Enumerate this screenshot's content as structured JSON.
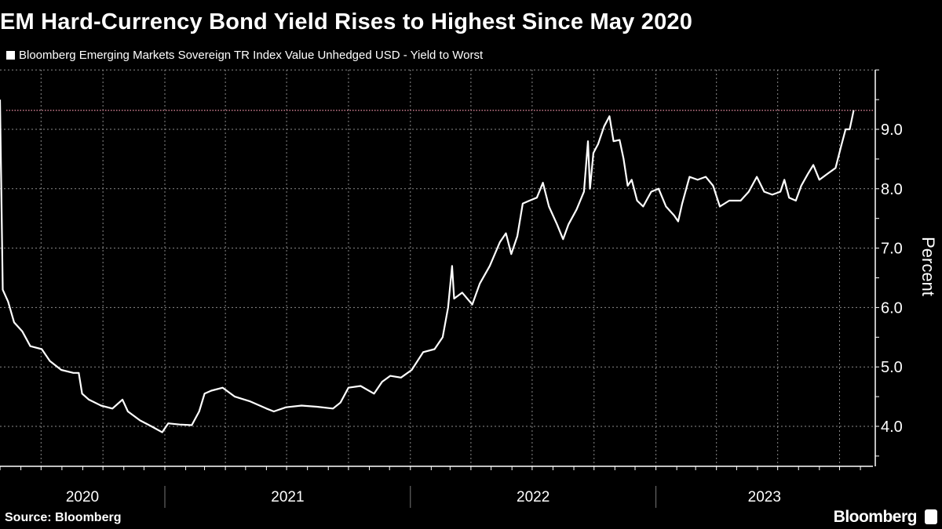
{
  "header": {
    "title": "EM Hard-Currency Bond Yield Rises to Highest Since May 2020"
  },
  "footer": {
    "source": "Source: Bloomberg",
    "brand": "Bloomberg"
  },
  "colors": {
    "background": "#000000",
    "series": "#ffffff",
    "reference_line": "#c97a8c",
    "grid": "#8a8a8a"
  },
  "chart_data": {
    "type": "line",
    "title": "EM Hard-Currency Bond Yield Rises to Highest Since May 2020",
    "ylabel": "Percent",
    "xlabel": "",
    "y_axis_side": "right",
    "ylim": [
      3.33,
      10.0
    ],
    "yticks": [
      "4.0",
      "5.0",
      "6.0",
      "7.0",
      "8.0",
      "9.0"
    ],
    "xticks": [
      "2020",
      "2021",
      "2022",
      "2023"
    ],
    "grid": true,
    "legend_placement": "top-left",
    "reference_line": {
      "value": 9.32,
      "style": "dotted"
    },
    "series": [
      {
        "name": "Bloomberg Emerging Markets Sovereign TR Index Value Unhedged USD - Yield to Worst",
        "points": [
          [
            "2020-05-01",
            9.5
          ],
          [
            "2020-05-05",
            6.3
          ],
          [
            "2020-05-13",
            6.1
          ],
          [
            "2020-05-22",
            5.75
          ],
          [
            "2020-06-03",
            5.6
          ],
          [
            "2020-06-15",
            5.35
          ],
          [
            "2020-07-02",
            5.3
          ],
          [
            "2020-07-14",
            5.1
          ],
          [
            "2020-07-31",
            4.95
          ],
          [
            "2020-08-18",
            4.9
          ],
          [
            "2020-08-26",
            4.9
          ],
          [
            "2020-08-31",
            4.55
          ],
          [
            "2020-09-10",
            4.45
          ],
          [
            "2020-09-28",
            4.35
          ],
          [
            "2020-10-15",
            4.3
          ],
          [
            "2020-10-30",
            4.45
          ],
          [
            "2020-11-07",
            4.25
          ],
          [
            "2020-11-25",
            4.1
          ],
          [
            "2020-12-12",
            4.0
          ],
          [
            "2020-12-28",
            3.9
          ],
          [
            "2021-01-06",
            4.05
          ],
          [
            "2021-01-23",
            4.03
          ],
          [
            "2021-02-10",
            4.02
          ],
          [
            "2021-02-21",
            4.25
          ],
          [
            "2021-03-01",
            4.55
          ],
          [
            "2021-03-11",
            4.6
          ],
          [
            "2021-03-28",
            4.65
          ],
          [
            "2021-04-15",
            4.5
          ],
          [
            "2021-05-08",
            4.42
          ],
          [
            "2021-06-01",
            4.3
          ],
          [
            "2021-06-12",
            4.25
          ],
          [
            "2021-06-30",
            4.32
          ],
          [
            "2021-07-23",
            4.35
          ],
          [
            "2021-08-15",
            4.33
          ],
          [
            "2021-09-08",
            4.3
          ],
          [
            "2021-09-19",
            4.4
          ],
          [
            "2021-10-01",
            4.65
          ],
          [
            "2021-10-19",
            4.68
          ],
          [
            "2021-11-08",
            4.55
          ],
          [
            "2021-11-20",
            4.75
          ],
          [
            "2021-12-02",
            4.85
          ],
          [
            "2021-12-18",
            4.82
          ],
          [
            "2022-01-03",
            4.95
          ],
          [
            "2022-01-20",
            5.25
          ],
          [
            "2022-02-06",
            5.3
          ],
          [
            "2022-02-18",
            5.5
          ],
          [
            "2022-02-26",
            6.0
          ],
          [
            "2022-03-04",
            6.7
          ],
          [
            "2022-03-07",
            6.15
          ],
          [
            "2022-03-19",
            6.25
          ],
          [
            "2022-04-03",
            6.05
          ],
          [
            "2022-04-14",
            6.4
          ],
          [
            "2022-04-29",
            6.7
          ],
          [
            "2022-05-14",
            7.1
          ],
          [
            "2022-05-23",
            7.25
          ],
          [
            "2022-05-31",
            6.9
          ],
          [
            "2022-06-09",
            7.2
          ],
          [
            "2022-06-17",
            7.75
          ],
          [
            "2022-06-27",
            7.8
          ],
          [
            "2022-07-08",
            7.85
          ],
          [
            "2022-07-17",
            8.1
          ],
          [
            "2022-07-26",
            7.7
          ],
          [
            "2022-08-07",
            7.4
          ],
          [
            "2022-08-16",
            7.15
          ],
          [
            "2022-08-24",
            7.4
          ],
          [
            "2022-09-05",
            7.65
          ],
          [
            "2022-09-16",
            7.95
          ],
          [
            "2022-09-22",
            8.8
          ],
          [
            "2022-09-25",
            8.0
          ],
          [
            "2022-09-30",
            8.6
          ],
          [
            "2022-10-07",
            8.75
          ],
          [
            "2022-10-16",
            9.05
          ],
          [
            "2022-10-24",
            9.22
          ],
          [
            "2022-10-30",
            8.8
          ],
          [
            "2022-11-08",
            8.82
          ],
          [
            "2022-11-14",
            8.5
          ],
          [
            "2022-11-20",
            8.05
          ],
          [
            "2022-11-26",
            8.15
          ],
          [
            "2022-12-04",
            7.8
          ],
          [
            "2022-12-13",
            7.7
          ],
          [
            "2022-12-25",
            7.95
          ],
          [
            "2023-01-05",
            8.0
          ],
          [
            "2023-01-16",
            7.7
          ],
          [
            "2023-01-28",
            7.55
          ],
          [
            "2023-02-03",
            7.45
          ],
          [
            "2023-02-09",
            7.75
          ],
          [
            "2023-02-20",
            8.2
          ],
          [
            "2023-03-04",
            8.15
          ],
          [
            "2023-03-16",
            8.2
          ],
          [
            "2023-03-27",
            8.05
          ],
          [
            "2023-04-06",
            7.7
          ],
          [
            "2023-04-20",
            7.8
          ],
          [
            "2023-05-07",
            7.8
          ],
          [
            "2023-05-19",
            7.95
          ],
          [
            "2023-05-31",
            8.2
          ],
          [
            "2023-06-11",
            7.95
          ],
          [
            "2023-06-23",
            7.9
          ],
          [
            "2023-07-05",
            7.95
          ],
          [
            "2023-07-11",
            8.15
          ],
          [
            "2023-07-18",
            7.85
          ],
          [
            "2023-07-28",
            7.8
          ],
          [
            "2023-08-05",
            8.05
          ],
          [
            "2023-08-15",
            8.25
          ],
          [
            "2023-08-23",
            8.4
          ],
          [
            "2023-09-01",
            8.15
          ],
          [
            "2023-09-13",
            8.25
          ],
          [
            "2023-09-25",
            8.35
          ],
          [
            "2023-10-03",
            8.7
          ],
          [
            "2023-10-10",
            9.0
          ],
          [
            "2023-10-16",
            9.0
          ],
          [
            "2023-10-22",
            9.32
          ]
        ]
      }
    ]
  }
}
